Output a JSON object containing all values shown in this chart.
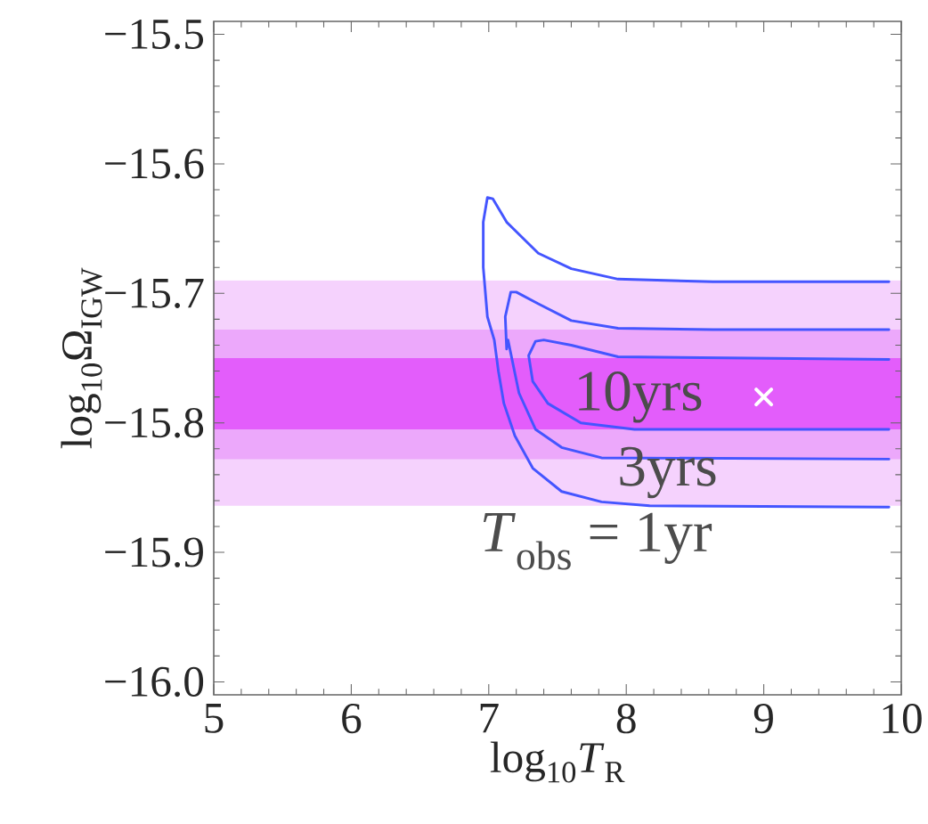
{
  "chart_data": {
    "type": "line",
    "xlabel": "log$_{10}$*T*$_{R}$",
    "ylabel": "log$_{10}$Ω$_{IGW}$",
    "xlim": [
      5,
      10
    ],
    "ylim": [
      -16.01,
      -15.49
    ],
    "xticks": [
      5,
      6,
      7,
      8,
      9,
      10
    ],
    "yticks": [
      {
        "value": -15.5,
        "label": "−15.5"
      },
      {
        "value": -15.6,
        "label": "−15.6"
      },
      {
        "value": -15.7,
        "label": "−15.7"
      },
      {
        "value": -15.8,
        "label": "−15.8"
      },
      {
        "value": -15.9,
        "label": "−15.9"
      },
      {
        "value": -16.0,
        "label": "−16.0"
      }
    ],
    "bands": [
      {
        "axis": "y",
        "from": -15.864,
        "to": -15.69,
        "color": "#f5d2fd"
      },
      {
        "axis": "y",
        "from": -15.828,
        "to": -15.728,
        "color": "#eca8fb"
      },
      {
        "axis": "y",
        "from": -15.805,
        "to": -15.75,
        "color": "#e35dfb"
      }
    ],
    "line_style": "solid",
    "series": [
      {
        "color": "#4455ff",
        "x": [
          9.91,
          8.63,
          7.94,
          7.6,
          7.36,
          7.13,
          7.03,
          6.99,
          6.96,
          6.96,
          6.99,
          7.04,
          7.07,
          7.11,
          7.19,
          7.32,
          7.53,
          7.82,
          8.17,
          9.91
        ],
        "values": [
          -15.691,
          -15.691,
          -15.689,
          -15.681,
          -15.669,
          -15.645,
          -15.627,
          -15.626,
          -15.645,
          -15.68,
          -15.718,
          -15.736,
          -15.76,
          -15.785,
          -15.81,
          -15.835,
          -15.853,
          -15.861,
          -15.864,
          -15.865
        ]
      },
      {
        "color": "#4455ff",
        "x": [
          9.91,
          8.63,
          7.94,
          7.6,
          7.36,
          7.2,
          7.16,
          7.12,
          7.13,
          7.14,
          7.22,
          7.34,
          7.53,
          7.82,
          9.91
        ],
        "values": [
          -15.728,
          -15.728,
          -15.727,
          -15.721,
          -15.708,
          -15.699,
          -15.699,
          -15.718,
          -15.743,
          -15.736,
          -15.777,
          -15.805,
          -15.819,
          -15.827,
          -15.828
        ]
      },
      {
        "color": "#4455ff",
        "x": [
          9.91,
          7.94,
          7.6,
          7.4,
          7.34,
          7.29,
          7.32,
          7.43,
          7.67,
          8.06,
          9.91
        ],
        "values": [
          -15.751,
          -15.749,
          -15.74,
          -15.736,
          -15.737,
          -15.748,
          -15.768,
          -15.785,
          -15.8,
          -15.805,
          -15.805
        ]
      },
      {
        "type": "scatter",
        "color": "#ffffff",
        "marker": "cross",
        "x": [
          9.0
        ],
        "values": [
          -15.78
        ]
      }
    ],
    "annotations": [
      "10yrs",
      "3yrs",
      "*T*$_{obs}$ = 1yr"
    ]
  }
}
